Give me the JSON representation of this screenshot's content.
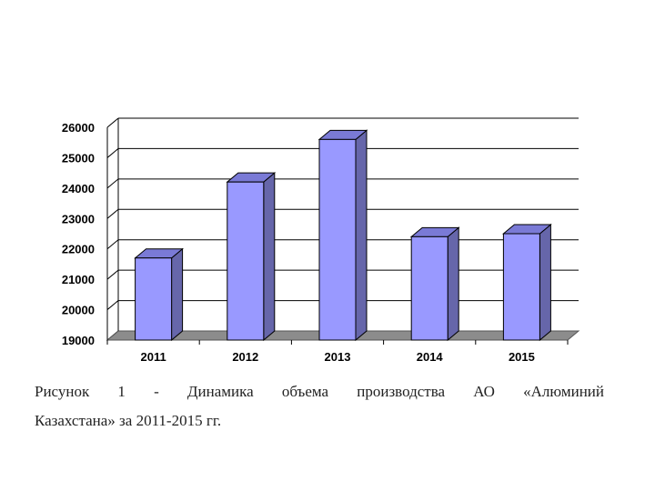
{
  "chart_data": {
    "type": "bar",
    "bar_style": "3d",
    "categories": [
      "2011",
      "2012",
      "2013",
      "2014",
      "2015"
    ],
    "values": [
      21700,
      24200,
      25600,
      22400,
      22500
    ],
    "y_ticks": [
      "19000",
      "20000",
      "21000",
      "22000",
      "23000",
      "24000",
      "25000",
      "26000"
    ],
    "ylim": [
      19000,
      26000
    ],
    "grid": true,
    "legend": "none"
  },
  "colors": {
    "bar_front": "#9999ff",
    "bar_side": "#6666aa",
    "bar_top": "#7a7ad6",
    "floor": "#8c8c8c",
    "grid": "#000000"
  },
  "caption": {
    "line1": "Рисунок 1 - Динамика объема производства АО «Алюминий",
    "line2": "Казахстана» за 2011-2015 гг."
  }
}
